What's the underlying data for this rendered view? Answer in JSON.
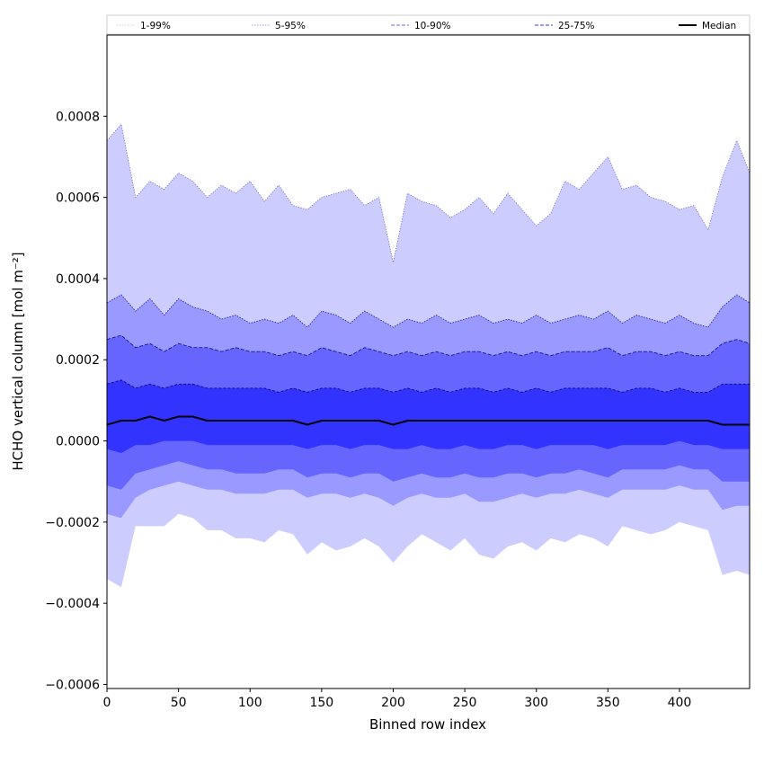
{
  "chart_data": {
    "type": "area",
    "xlabel": "Binned row index",
    "ylabel": "HCHO vertical column [mol m⁻²]",
    "xlim": [
      0,
      449
    ],
    "ylim": [
      -0.00061,
      0.001
    ],
    "xticks": [
      0,
      50,
      100,
      150,
      200,
      250,
      300,
      350,
      400
    ],
    "xtick_labels": [
      "0",
      "50",
      "100",
      "150",
      "200",
      "250",
      "300",
      "350",
      "400"
    ],
    "yticks": [
      -0.0006,
      -0.0004,
      -0.0002,
      0.0,
      0.0002,
      0.0004,
      0.0006,
      0.0008
    ],
    "ytick_labels": [
      "−0.0006",
      "−0.0004",
      "−0.0002",
      "0.0000",
      "0.0002",
      "0.0004",
      "0.0006",
      "0.0008"
    ],
    "grid": false,
    "legend_position": "top",
    "legend": [
      {
        "label": "1-99%",
        "color": "#ccccff",
        "style": "dotted"
      },
      {
        "label": "5-95%",
        "color": "#9999ff",
        "style": "dotted"
      },
      {
        "label": "10-90%",
        "color": "#6666ff",
        "style": "dashed"
      },
      {
        "label": "25-75%",
        "color": "#3333ff",
        "style": "dashed"
      },
      {
        "label": "Median",
        "color": "#000000",
        "style": "solid"
      }
    ],
    "x": [
      0,
      10,
      20,
      30,
      40,
      50,
      60,
      70,
      80,
      90,
      100,
      110,
      120,
      130,
      140,
      150,
      160,
      170,
      180,
      190,
      200,
      210,
      220,
      230,
      240,
      250,
      260,
      270,
      280,
      290,
      300,
      310,
      320,
      330,
      340,
      350,
      360,
      370,
      380,
      390,
      400,
      410,
      420,
      430,
      440,
      449
    ],
    "series": [
      {
        "name": "1-99%",
        "color": "#ccccff",
        "upper": [
          0.00074,
          0.00078,
          0.0006,
          0.00064,
          0.00062,
          0.00066,
          0.00064,
          0.0006,
          0.00063,
          0.00061,
          0.00064,
          0.00059,
          0.00063,
          0.00058,
          0.00057,
          0.0006,
          0.00061,
          0.00062,
          0.00058,
          0.0006,
          0.00044,
          0.00061,
          0.00059,
          0.00058,
          0.00055,
          0.00057,
          0.0006,
          0.00056,
          0.00061,
          0.00057,
          0.00053,
          0.00056,
          0.00064,
          0.00062,
          0.00066,
          0.0007,
          0.00062,
          0.00063,
          0.0006,
          0.00059,
          0.00057,
          0.00058,
          0.00052,
          0.00065,
          0.00074,
          0.00066
        ],
        "lower": [
          -0.00034,
          -0.00036,
          -0.00021,
          -0.00021,
          -0.00021,
          -0.00018,
          -0.00019,
          -0.00022,
          -0.00022,
          -0.00024,
          -0.00024,
          -0.00025,
          -0.00022,
          -0.00023,
          -0.00028,
          -0.00025,
          -0.00027,
          -0.00026,
          -0.00024,
          -0.00026,
          -0.0003,
          -0.00026,
          -0.00023,
          -0.00025,
          -0.00027,
          -0.00024,
          -0.00028,
          -0.00029,
          -0.00026,
          -0.00025,
          -0.00027,
          -0.00024,
          -0.00025,
          -0.00023,
          -0.00024,
          -0.00026,
          -0.00021,
          -0.00022,
          -0.00023,
          -0.00022,
          -0.0002,
          -0.00021,
          -0.00022,
          -0.00033,
          -0.00032,
          -0.00033
        ]
      },
      {
        "name": "5-95%",
        "color": "#9999ff",
        "upper": [
          0.00034,
          0.00036,
          0.00032,
          0.00035,
          0.00031,
          0.00035,
          0.00033,
          0.00032,
          0.0003,
          0.00031,
          0.00029,
          0.0003,
          0.00029,
          0.00031,
          0.00028,
          0.00032,
          0.00031,
          0.00029,
          0.00032,
          0.0003,
          0.00028,
          0.0003,
          0.00029,
          0.00031,
          0.00029,
          0.0003,
          0.00031,
          0.00029,
          0.0003,
          0.00029,
          0.00031,
          0.00029,
          0.0003,
          0.00031,
          0.0003,
          0.00032,
          0.00029,
          0.00031,
          0.0003,
          0.00029,
          0.00031,
          0.00029,
          0.00028,
          0.00033,
          0.00036,
          0.00034
        ],
        "lower": [
          -0.00018,
          -0.00019,
          -0.00014,
          -0.00012,
          -0.00011,
          -0.0001,
          -0.00011,
          -0.00012,
          -0.00012,
          -0.00013,
          -0.00013,
          -0.00013,
          -0.00012,
          -0.00012,
          -0.00014,
          -0.00013,
          -0.00013,
          -0.00014,
          -0.00013,
          -0.00014,
          -0.00016,
          -0.00014,
          -0.00013,
          -0.00014,
          -0.00014,
          -0.00013,
          -0.00015,
          -0.00015,
          -0.00014,
          -0.00013,
          -0.00014,
          -0.00013,
          -0.00013,
          -0.00012,
          -0.00013,
          -0.00014,
          -0.00012,
          -0.00012,
          -0.00012,
          -0.00012,
          -0.00011,
          -0.00012,
          -0.00012,
          -0.00017,
          -0.00016,
          -0.00016
        ]
      },
      {
        "name": "10-90%",
        "color": "#6666ff",
        "upper": [
          0.00025,
          0.00026,
          0.00023,
          0.00024,
          0.00022,
          0.00024,
          0.00023,
          0.00023,
          0.00022,
          0.00023,
          0.00022,
          0.00022,
          0.00021,
          0.00022,
          0.00021,
          0.00023,
          0.00022,
          0.00021,
          0.00023,
          0.00022,
          0.00021,
          0.00022,
          0.00021,
          0.00022,
          0.00021,
          0.00022,
          0.00022,
          0.00021,
          0.00022,
          0.00021,
          0.00022,
          0.00021,
          0.00022,
          0.00022,
          0.00022,
          0.00023,
          0.00021,
          0.00022,
          0.00022,
          0.00021,
          0.00022,
          0.00021,
          0.00021,
          0.00024,
          0.00025,
          0.00024
        ],
        "lower": [
          -0.00011,
          -0.00012,
          -8e-05,
          -7e-05,
          -6e-05,
          -5e-05,
          -6e-05,
          -7e-05,
          -7e-05,
          -8e-05,
          -8e-05,
          -8e-05,
          -7e-05,
          -7e-05,
          -9e-05,
          -8e-05,
          -8e-05,
          -9e-05,
          -8e-05,
          -8e-05,
          -0.0001,
          -9e-05,
          -8e-05,
          -9e-05,
          -9e-05,
          -8e-05,
          -9e-05,
          -9e-05,
          -8e-05,
          -8e-05,
          -9e-05,
          -8e-05,
          -8e-05,
          -7e-05,
          -8e-05,
          -9e-05,
          -7e-05,
          -7e-05,
          -7e-05,
          -7e-05,
          -6e-05,
          -7e-05,
          -7e-05,
          -0.0001,
          -0.0001,
          -0.0001
        ]
      },
      {
        "name": "25-75%",
        "color": "#3333ff",
        "upper": [
          0.00014,
          0.00015,
          0.00013,
          0.00014,
          0.00013,
          0.00014,
          0.00014,
          0.00013,
          0.00013,
          0.00013,
          0.00013,
          0.00013,
          0.00012,
          0.00013,
          0.00012,
          0.00013,
          0.00013,
          0.00012,
          0.00013,
          0.00013,
          0.00012,
          0.00013,
          0.00012,
          0.00013,
          0.00012,
          0.00013,
          0.00013,
          0.00012,
          0.00013,
          0.00012,
          0.00013,
          0.00012,
          0.00013,
          0.00013,
          0.00013,
          0.00013,
          0.00012,
          0.00013,
          0.00013,
          0.00012,
          0.00013,
          0.00012,
          0.00012,
          0.00014,
          0.00014,
          0.00014
        ],
        "lower": [
          -2e-05,
          -3e-05,
          -1e-05,
          -1e-05,
          0.0,
          0.0,
          0.0,
          -1e-05,
          -1e-05,
          -1e-05,
          -1e-05,
          -1e-05,
          -1e-05,
          -1e-05,
          -2e-05,
          -1e-05,
          -1e-05,
          -2e-05,
          -1e-05,
          -1e-05,
          -2e-05,
          -2e-05,
          -1e-05,
          -2e-05,
          -2e-05,
          -1e-05,
          -2e-05,
          -2e-05,
          -1e-05,
          -1e-05,
          -2e-05,
          -1e-05,
          -1e-05,
          -1e-05,
          -1e-05,
          -2e-05,
          -1e-05,
          -1e-05,
          -1e-05,
          -1e-05,
          0.0,
          -1e-05,
          -1e-05,
          -2e-05,
          -2e-05,
          -2e-05
        ]
      },
      {
        "name": "Median",
        "color": "#000000",
        "values": [
          4e-05,
          5e-05,
          5e-05,
          6e-05,
          5e-05,
          6e-05,
          6e-05,
          5e-05,
          5e-05,
          5e-05,
          5e-05,
          5e-05,
          5e-05,
          5e-05,
          4e-05,
          5e-05,
          5e-05,
          5e-05,
          5e-05,
          5e-05,
          4e-05,
          5e-05,
          5e-05,
          5e-05,
          5e-05,
          5e-05,
          5e-05,
          5e-05,
          5e-05,
          5e-05,
          5e-05,
          5e-05,
          5e-05,
          5e-05,
          5e-05,
          5e-05,
          5e-05,
          5e-05,
          5e-05,
          5e-05,
          5e-05,
          5e-05,
          5e-05,
          4e-05,
          4e-05,
          4e-05
        ]
      }
    ]
  }
}
